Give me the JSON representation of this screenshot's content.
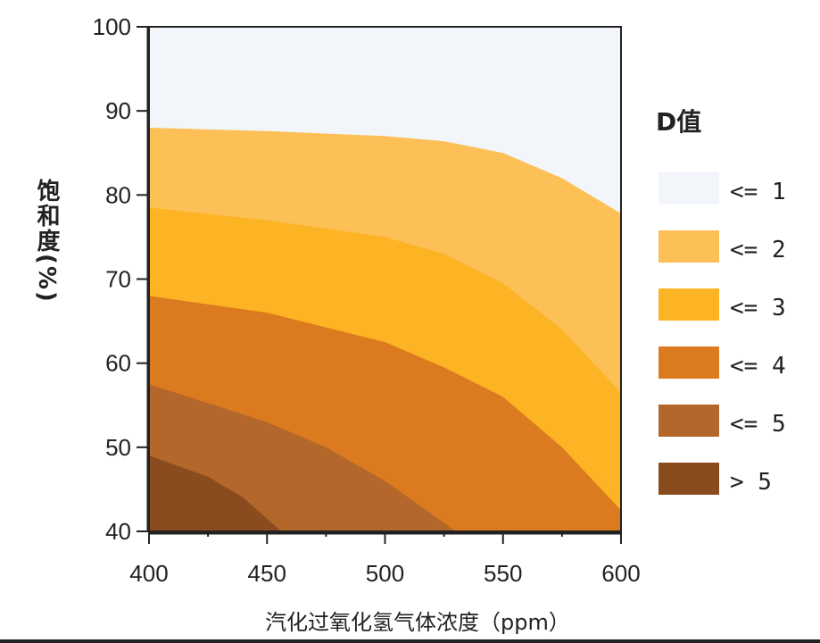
{
  "chart_data": {
    "type": "contour",
    "title": "",
    "xlabel": "汽化过氧化氢气体浓度（ppm）",
    "ylabel": "饱和度(%)",
    "xlim": [
      400,
      600
    ],
    "ylim": [
      40,
      100
    ],
    "xticks": [
      400,
      450,
      500,
      550,
      600
    ],
    "yticks": [
      40,
      50,
      60,
      70,
      80,
      90,
      100
    ],
    "legend": {
      "title": "D值",
      "placement": "right",
      "entries": [
        {
          "label": "<= 1",
          "color": "#f2f6fb"
        },
        {
          "label": "<= 2",
          "color": "#fcc056"
        },
        {
          "label": "<= 3",
          "color": "#fcb424"
        },
        {
          "label": "<= 4",
          "color": "#db7a1f"
        },
        {
          "label": "<= 5",
          "color": "#b3672a"
        },
        {
          "label": "> 5",
          "color": "#8a4c1f"
        }
      ]
    },
    "contour_boundaries": [
      {
        "between": [
          "<= 1",
          "<= 2"
        ],
        "x": [
          400,
          450,
          500,
          525,
          550,
          575,
          600
        ],
        "y": [
          88,
          87.6,
          87,
          86.4,
          85,
          82,
          77.8
        ]
      },
      {
        "between": [
          "<= 2",
          "<= 3"
        ],
        "x": [
          400,
          450,
          500,
          525,
          550,
          575,
          600
        ],
        "y": [
          78.5,
          77,
          75,
          73,
          69.5,
          64,
          56.5
        ]
      },
      {
        "between": [
          "<= 3",
          "<= 4"
        ],
        "x": [
          400,
          450,
          500,
          525,
          550,
          575,
          600
        ],
        "y": [
          68,
          66,
          62.5,
          59.5,
          56,
          50,
          42.5
        ]
      },
      {
        "between": [
          "<= 4",
          "<= 5"
        ],
        "x": [
          400,
          450,
          475,
          500,
          530
        ],
        "y": [
          57.5,
          53,
          50,
          46,
          40
        ]
      },
      {
        "between": [
          "<= 5",
          "> 5"
        ],
        "x": [
          400,
          425,
          440,
          456
        ],
        "y": [
          49,
          46.5,
          44,
          40
        ]
      }
    ]
  }
}
